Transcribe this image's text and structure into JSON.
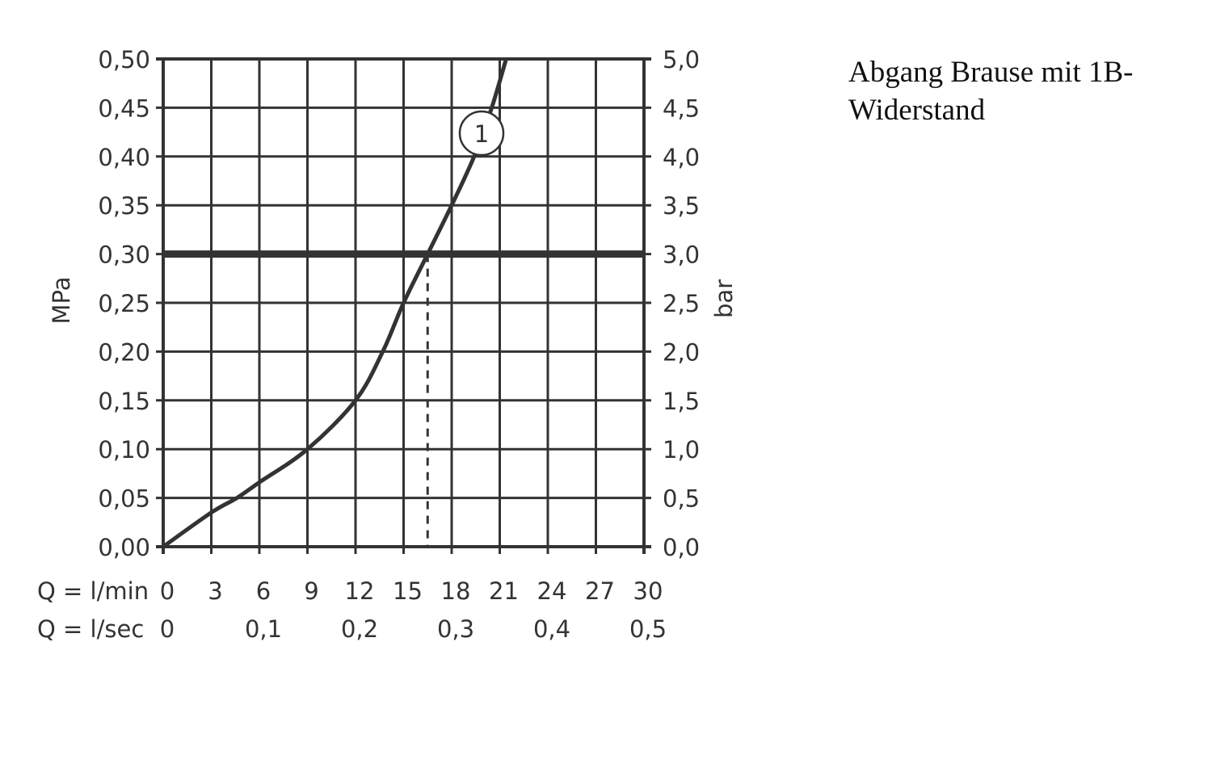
{
  "chart_data": {
    "type": "line",
    "title": "",
    "note": "Abgang Brause mit 1B-Widerstand",
    "ylabel_left": "MPa",
    "ylabel_right": "bar",
    "xlabel_rows": [
      "Q = l/min",
      "Q = l/sec"
    ],
    "xlim": [
      0,
      30
    ],
    "ylim": [
      0,
      0.5
    ],
    "grid": true,
    "x_ticks_lmin": [
      "0",
      "3",
      "6",
      "9",
      "12",
      "15",
      "18",
      "21",
      "24",
      "27",
      "30"
    ],
    "x_ticks_lsec": [
      {
        "x": 0,
        "label": "0"
      },
      {
        "x": 6,
        "label": "0,1"
      },
      {
        "x": 12,
        "label": "0,2"
      },
      {
        "x": 18,
        "label": "0,3"
      },
      {
        "x": 24,
        "label": "0,4"
      },
      {
        "x": 30,
        "label": "0,5"
      }
    ],
    "y_ticks_left": [
      "0,00",
      "0,05",
      "0,10",
      "0,15",
      "0,20",
      "0,25",
      "0,30",
      "0,35",
      "0,40",
      "0,45",
      "0,50"
    ],
    "y_ticks_right": [
      "0,0",
      "0,5",
      "1,0",
      "1,5",
      "2,0",
      "2,5",
      "3,0",
      "3,5",
      "4,0",
      "4,5",
      "5,0"
    ],
    "reference_line_y": 0.3,
    "reference_drop_x": 16.5,
    "series": [
      {
        "label": "1",
        "x": [
          0,
          3,
          4.6,
          6,
          9,
          12,
          13.7,
          15,
          16.5,
          18,
          19.4,
          20.5,
          21.4
        ],
        "y": [
          0,
          0.035,
          0.05,
          0.066,
          0.1,
          0.15,
          0.2,
          0.25,
          0.3,
          0.35,
          0.4,
          0.45,
          0.5
        ]
      }
    ]
  }
}
